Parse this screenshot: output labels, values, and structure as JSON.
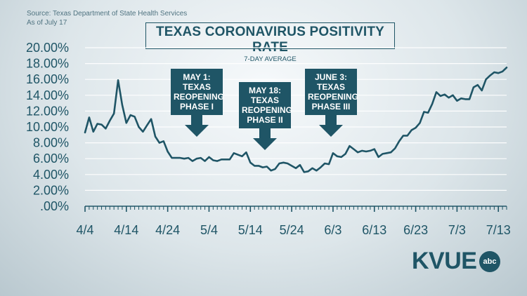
{
  "source_line1": "Source: Texas Department of State Health Services",
  "source_line2": "As of July 17",
  "logo_text": "KVUE",
  "logo_badge": "abc",
  "annotations": [
    {
      "lines": [
        "MAY 1:",
        "TEXAS",
        "REOPENING",
        "PHASE I"
      ],
      "x_date_index": 27
    },
    {
      "lines": [
        "MAY 18:",
        "TEXAS",
        "REOPENING",
        "PHASE II"
      ],
      "x_date_index": 44
    },
    {
      "lines": [
        "JUNE 3:",
        "TEXAS",
        "REOPENING",
        "PHASE III"
      ],
      "x_date_index": 60
    }
  ],
  "colors": {
    "line": "#1f5566",
    "grid": "#ffffff",
    "text": "#1f5566"
  },
  "chart_data": {
    "type": "line",
    "title": "TEXAS CORONAVIRUS POSITIVITY RATE",
    "subtitle": "7-DAY AVERAGE",
    "xlabel": "",
    "ylabel": "",
    "ylim": [
      0,
      20
    ],
    "y_ticks": [
      0,
      2,
      4,
      6,
      8,
      10,
      12,
      14,
      16,
      18,
      20
    ],
    "y_tick_labels": [
      ".00%",
      "2.00%",
      "4.00%",
      "6.00%",
      "8.00%",
      "10.00%",
      "12.00%",
      "14.00%",
      "16.00%",
      "18.00%",
      "20.00%"
    ],
    "x_tick_labels": [
      "4/4",
      "4/14",
      "4/24",
      "5/4",
      "5/14",
      "5/24",
      "6/3",
      "6/13",
      "6/23",
      "7/3",
      "7/13"
    ],
    "x_tick_step_days": 10,
    "grid": true,
    "series": [
      {
        "name": "Positivity rate (7-day average)",
        "start_date": "4/4",
        "values": [
          9.3,
          11.2,
          9.4,
          10.4,
          10.3,
          9.8,
          10.8,
          11.7,
          15.9,
          12.8,
          10.5,
          11.5,
          11.3,
          10.0,
          9.4,
          10.2,
          11.0,
          8.8,
          8.0,
          8.2,
          6.9,
          6.1,
          6.1,
          6.1,
          6.0,
          6.1,
          5.7,
          6.0,
          6.1,
          5.7,
          6.2,
          5.8,
          5.7,
          5.9,
          5.9,
          5.9,
          6.7,
          6.5,
          6.3,
          6.8,
          5.5,
          5.1,
          5.1,
          4.9,
          5.0,
          4.5,
          4.7,
          5.4,
          5.5,
          5.4,
          5.1,
          4.8,
          5.2,
          4.3,
          4.4,
          4.8,
          4.5,
          4.9,
          5.4,
          5.3,
          6.7,
          6.3,
          6.2,
          6.6,
          7.6,
          7.2,
          6.8,
          7.0,
          6.9,
          7.0,
          7.2,
          6.2,
          6.6,
          6.7,
          6.8,
          7.3,
          8.2,
          8.9,
          8.9,
          9.6,
          9.9,
          10.5,
          11.9,
          11.8,
          12.9,
          14.4,
          13.9,
          14.1,
          13.7,
          14.0,
          13.3,
          13.6,
          13.5,
          13.5,
          15.0,
          15.3,
          14.6,
          16.0,
          16.5,
          16.9,
          16.8,
          17.0,
          17.5
        ]
      }
    ]
  }
}
